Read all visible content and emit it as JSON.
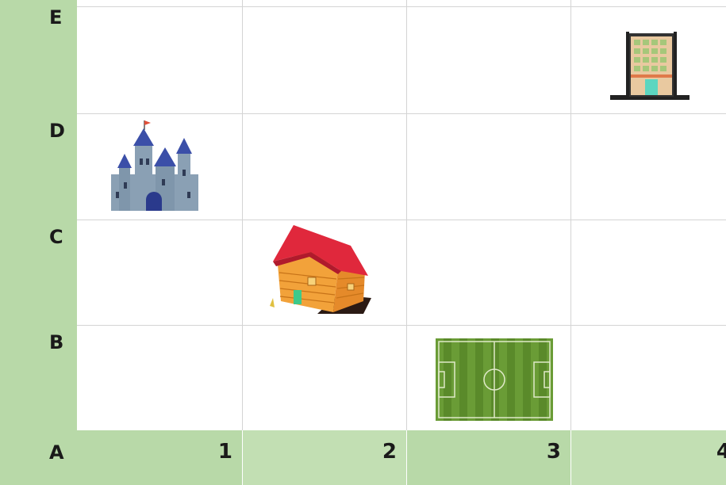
{
  "grid": {
    "row_labels": [
      "E",
      "D",
      "C",
      "B",
      "A"
    ],
    "column_labels": [
      "1",
      "2",
      "3",
      "4"
    ]
  },
  "places": [
    {
      "name": "building",
      "icon": "office-building-icon",
      "cell": "E4"
    },
    {
      "name": "castle",
      "icon": "castle-icon",
      "cell": "D1"
    },
    {
      "name": "house",
      "icon": "wooden-house-icon",
      "cell": "C2"
    },
    {
      "name": "football field",
      "icon": "soccer-field-icon",
      "cell": "B3"
    }
  ],
  "colors": {
    "header_green": "#b8d9a8",
    "grid_line": "#d4d4d4",
    "castle_blue": "#3b4fa8",
    "roof_red": "#d9223a",
    "field_green": "#5a8a2a"
  }
}
